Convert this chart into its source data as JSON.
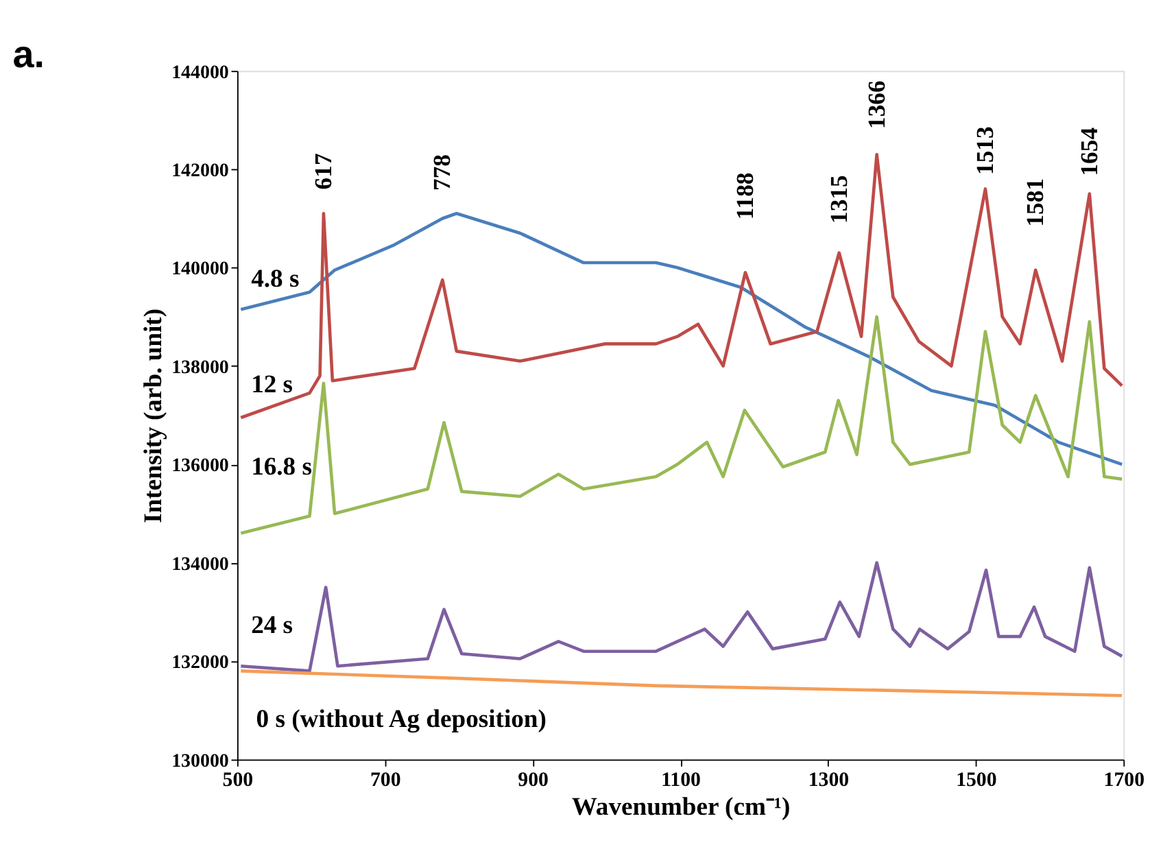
{
  "chart_data": {
    "type": "line",
    "title": "a.",
    "xlabel": "Wavenumber (cm⁻¹)",
    "ylabel": "Intensity (arb. unit)",
    "xlim": [
      500,
      1700
    ],
    "xticks": [
      500,
      700,
      900,
      1100,
      1300,
      1500,
      1700
    ],
    "ylim": [
      130000,
      144000
    ],
    "yticks": [
      130000,
      132000,
      134000,
      136000,
      138000,
      140000,
      142000,
      144000
    ],
    "grid": false,
    "legend": false,
    "marker": "none",
    "line_style": "solid",
    "series": [
      {
        "name": "4.8 s",
        "color": "#4a7ebb",
        "x": [
          505,
          598,
          632,
          711,
          778,
          797,
          883,
          969,
          1067,
          1096,
          1182,
          1268,
          1354,
          1440,
          1526,
          1612,
          1698
        ],
        "values": [
          139150,
          139500,
          139950,
          140450,
          141000,
          141100,
          140700,
          140100,
          140100,
          140000,
          139600,
          138800,
          138200,
          137500,
          137200,
          136450,
          136000
        ]
      },
      {
        "name": "12 s",
        "color": "#be4b48",
        "x": [
          505,
          598,
          612,
          617,
          629,
          740,
          778,
          797,
          883,
          998,
          1067,
          1096,
          1124,
          1158,
          1188,
          1222,
          1285,
          1315,
          1345,
          1366,
          1388,
          1423,
          1467,
          1513,
          1536,
          1560,
          1581,
          1617,
          1654,
          1674,
          1698
        ],
        "values": [
          136950,
          137450,
          137800,
          141100,
          137700,
          137950,
          139750,
          138300,
          138100,
          138450,
          138450,
          138600,
          138850,
          138000,
          139900,
          138450,
          138700,
          140300,
          138600,
          142300,
          139400,
          138500,
          138000,
          141600,
          139000,
          138450,
          139950,
          138100,
          141500,
          137950,
          137600
        ]
      },
      {
        "name": "16.8 s",
        "color": "#98b954",
        "x": [
          505,
          598,
          617,
          632,
          758,
          780,
          804,
          883,
          935,
          969,
          1067,
          1096,
          1136,
          1158,
          1187,
          1239,
          1296,
          1314,
          1339,
          1366,
          1388,
          1411,
          1491,
          1513,
          1536,
          1560,
          1581,
          1625,
          1654,
          1674,
          1698
        ],
        "values": [
          134600,
          134950,
          137650,
          135000,
          135500,
          136850,
          135450,
          135350,
          135800,
          135500,
          135750,
          136000,
          136450,
          135750,
          137100,
          135950,
          136250,
          137300,
          136200,
          139000,
          136450,
          136000,
          136250,
          138700,
          136800,
          136450,
          137400,
          135750,
          138900,
          135750,
          135700
        ]
      },
      {
        "name": "24 s",
        "color": "#7d60a0",
        "x": [
          505,
          598,
          620,
          636,
          758,
          780,
          804,
          883,
          935,
          969,
          1067,
          1096,
          1133,
          1158,
          1191,
          1225,
          1296,
          1316,
          1342,
          1366,
          1388,
          1411,
          1424,
          1462,
          1491,
          1514,
          1531,
          1560,
          1579,
          1594,
          1634,
          1654,
          1674,
          1698
        ],
        "values": [
          131900,
          131800,
          133500,
          131900,
          132050,
          133050,
          132150,
          132050,
          132400,
          132200,
          132200,
          132400,
          132650,
          132300,
          133000,
          132250,
          132450,
          133200,
          132500,
          134000,
          132650,
          132300,
          132650,
          132250,
          132600,
          133850,
          132500,
          132500,
          133100,
          132500,
          132200,
          133900,
          132300,
          132100
        ]
      },
      {
        "name": "0 s (without Ag deposition)",
        "color": "#f59d56",
        "x": [
          505,
          800,
          1067,
          1400,
          1698
        ],
        "values": [
          131800,
          131650,
          131500,
          131400,
          131300
        ]
      }
    ],
    "annotations": [
      {
        "text": "617",
        "x": 617,
        "y": 141100
      },
      {
        "text": "778",
        "x": 778,
        "y": 141000
      },
      {
        "text": "1188",
        "x": 1188,
        "y": 139900
      },
      {
        "text": "1315",
        "x": 1315,
        "y": 140300
      },
      {
        "text": "1366",
        "x": 1366,
        "y": 142300
      },
      {
        "text": "1513",
        "x": 1513,
        "y": 141600
      },
      {
        "text": "1581",
        "x": 1581,
        "y": 139950
      },
      {
        "text": "1654",
        "x": 1654,
        "y": 141500
      }
    ]
  }
}
